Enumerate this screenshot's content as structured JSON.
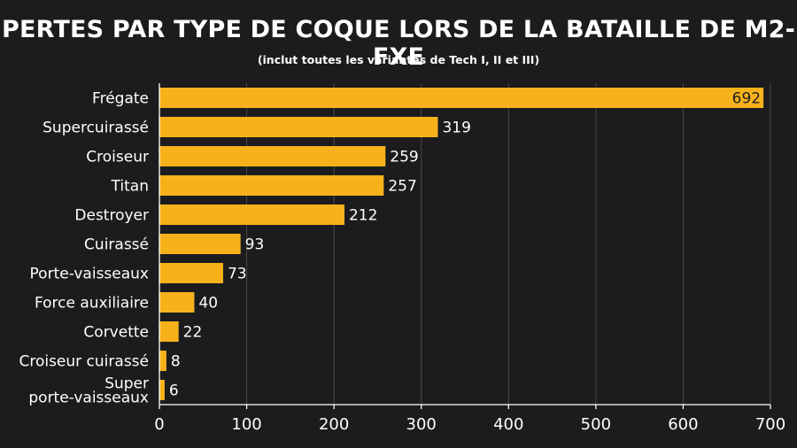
{
  "chart_data": {
    "type": "bar",
    "orientation": "horizontal",
    "title": "PERTES PAR TYPE DE COQUE LORS DE LA BATAILLE DE M2-FXE",
    "subtitle": "(inclut toutes les variantes de Tech I, II et III)",
    "categories": [
      "Frégate",
      "Supercuirassé",
      "Croiseur",
      "Titan",
      "Destroyer",
      "Cuirassé",
      "Porte-vaisseaux",
      "Force auxiliaire",
      "Corvette",
      "Croiseur cuirassé",
      "Super\nporte-vaisseaux"
    ],
    "values": [
      692,
      319,
      259,
      257,
      212,
      93,
      73,
      40,
      22,
      8,
      6
    ],
    "xlim": [
      0,
      700
    ],
    "xticks": [
      0,
      100,
      200,
      300,
      400,
      500,
      600,
      700
    ],
    "xlabel": "",
    "ylabel": "",
    "grid": true,
    "bar_color": "#f7b21b",
    "background_color": "#1c1c1e",
    "grid_color": "#4a4a4c",
    "text_color": "#ffffff"
  }
}
